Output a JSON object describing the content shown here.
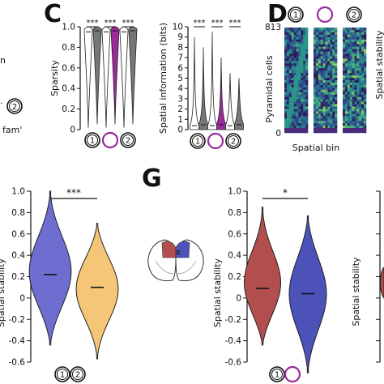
{
  "figure": {
    "left_fragments": {
      "text_n": "n",
      "text_fam": "fam'",
      "circle_label": "2"
    },
    "markers": {
      "env1": "1",
      "env2": "2"
    }
  },
  "chart_data": [
    {
      "id": "C1",
      "panel_letter": "C",
      "type": "violin",
      "title": "",
      "xlabel": "",
      "ylabel": "Sparsity",
      "ylim": [
        0,
        1
      ],
      "yticks": [
        "0",
        "0.2",
        "0.4",
        "0.6",
        "0.8",
        "1.0"
      ],
      "significance": [
        "***",
        "***",
        "***"
      ],
      "x_markers": [
        "1",
        "",
        "2"
      ],
      "series": [
        {
          "group": "1",
          "color": "#ffffff",
          "values": {
            "median": 0.95,
            "max": 1.0,
            "min": 0.02
          }
        },
        {
          "group": "1",
          "color": "#777777",
          "values": {
            "median": 0.96,
            "max": 1.0,
            "min": 0.05
          }
        },
        {
          "group": "novel",
          "color": "#ffffff",
          "values": {
            "median": 0.95,
            "max": 1.0,
            "min": 0.02
          }
        },
        {
          "group": "novel",
          "color": "#9b2a9b",
          "values": {
            "median": 0.96,
            "max": 1.0,
            "min": 0.05
          }
        },
        {
          "group": "2",
          "color": "#ffffff",
          "values": {
            "median": 0.95,
            "max": 1.0,
            "min": 0.02
          }
        },
        {
          "group": "2",
          "color": "#777777",
          "values": {
            "median": 0.96,
            "max": 1.0,
            "min": 0.05
          }
        }
      ]
    },
    {
      "id": "C2",
      "type": "violin",
      "title": "",
      "xlabel": "",
      "ylabel": "Spatial information (bits)",
      "ylim": [
        0,
        10
      ],
      "yticks": [
        "0",
        "1",
        "2",
        "3",
        "4",
        "5",
        "6",
        "7",
        "8",
        "9",
        "10"
      ],
      "significance": [
        "***",
        "***",
        "***"
      ],
      "x_markers": [
        "1",
        "",
        "2"
      ],
      "series": [
        {
          "group": "1",
          "color": "#ffffff",
          "values": {
            "median": 0.3,
            "max": 9.0,
            "min": 0
          }
        },
        {
          "group": "1",
          "color": "#777777",
          "values": {
            "median": 0.4,
            "max": 8.0,
            "min": 0
          }
        },
        {
          "group": "novel",
          "color": "#ffffff",
          "values": {
            "median": 0.3,
            "max": 9.5,
            "min": 0
          }
        },
        {
          "group": "novel",
          "color": "#9b2a9b",
          "values": {
            "median": 0.4,
            "max": 7.0,
            "min": 0
          }
        },
        {
          "group": "2",
          "color": "#ffffff",
          "values": {
            "median": 0.3,
            "max": 5.5,
            "min": 0
          }
        },
        {
          "group": "2",
          "color": "#777777",
          "values": {
            "median": 0.4,
            "max": 5.0,
            "min": 0
          }
        }
      ]
    },
    {
      "id": "D",
      "panel_letter": "D",
      "type": "heatmap",
      "title": "",
      "xlabel": "Spatial bin",
      "ylabel": "Pyramidal cells",
      "ytick_top": "813",
      "ytick_bottom": "0",
      "columns": [
        "1",
        "",
        "2"
      ],
      "side_label": "Spatial stability"
    },
    {
      "id": "F",
      "type": "violin",
      "title": "",
      "xlabel": "",
      "ylabel": "Spatial stability",
      "ylim": [
        -0.6,
        1.0
      ],
      "yticks": [
        "-0.6",
        "-0.4",
        "-0.2",
        "0",
        "0.2",
        "0.4",
        "0.6",
        "0.8",
        "1.0"
      ],
      "significance": "***",
      "x_markers": [
        "1",
        "2"
      ],
      "series": [
        {
          "group": "1",
          "color": "#6d6ed0",
          "values": {
            "median": 0.22,
            "max": 1.0,
            "min": -0.44
          }
        },
        {
          "group": "2",
          "color": "#f6c678",
          "values": {
            "median": 0.1,
            "max": 0.7,
            "min": -0.57
          }
        }
      ]
    },
    {
      "id": "G",
      "panel_letter": "G",
      "type": "violin",
      "title": "",
      "xlabel": "",
      "ylabel": "Spatial stability",
      "ylim": [
        -0.6,
        1.0
      ],
      "yticks": [
        "-0.6",
        "-0.4",
        "-0.2",
        "0",
        "0.2",
        "0.4",
        "0.6",
        "0.8",
        "1.0"
      ],
      "significance": "*",
      "x_markers": [
        "1",
        ""
      ],
      "brain_label": "R",
      "series": [
        {
          "group": "L",
          "color": "#b24e4e",
          "values": {
            "median": 0.09,
            "max": 0.85,
            "min": -0.44
          }
        },
        {
          "group": "R",
          "color": "#4c52b8",
          "values": {
            "median": 0.04,
            "max": 0.77,
            "min": -0.7
          }
        }
      ]
    },
    {
      "id": "H",
      "type": "violin",
      "title": "",
      "xlabel": "",
      "ylabel": "Spatial stability",
      "ylim": [
        -0.6,
        1.0
      ]
    }
  ]
}
